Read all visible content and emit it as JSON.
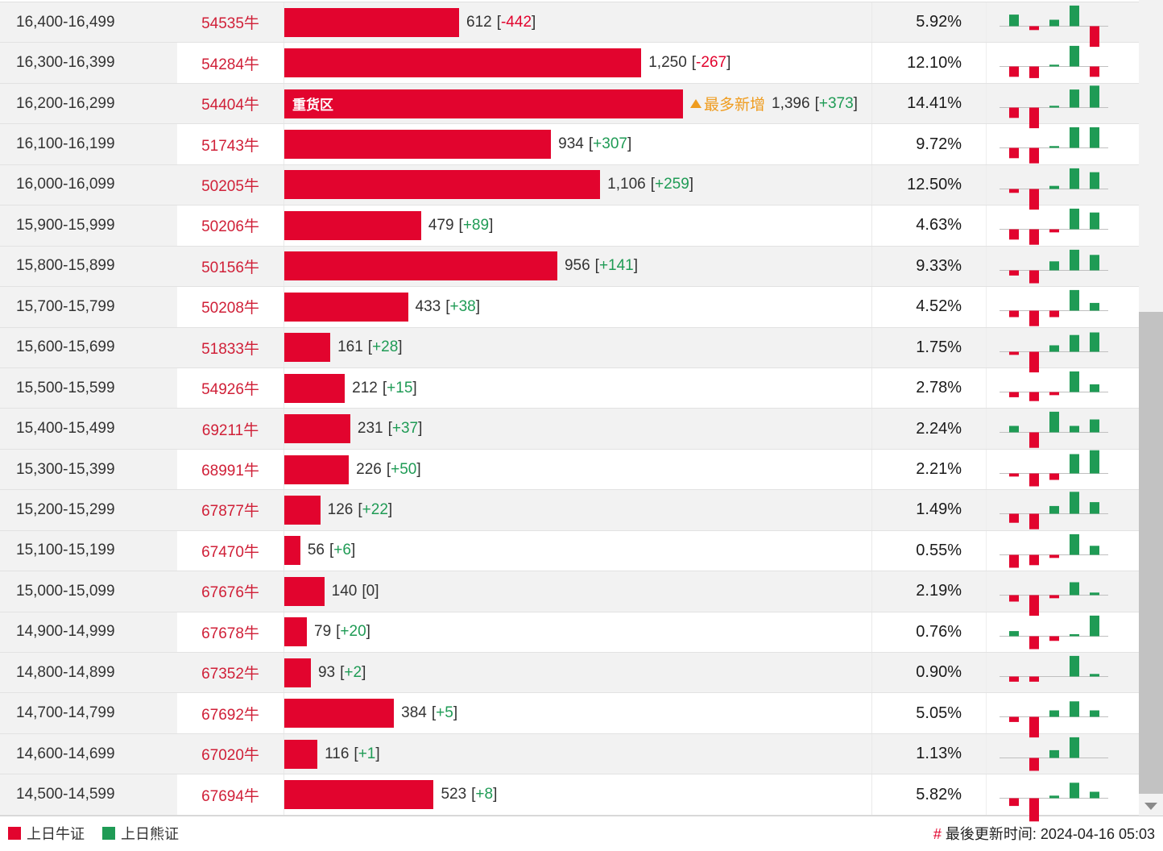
{
  "colors": {
    "bar_red": "#e2042e",
    "code_red": "#d02038",
    "green": "#1f9b55",
    "orange": "#ef9c1f",
    "row_alt_bg": "#f2f2f2",
    "baseline_gray": "#c0c0c0",
    "scroll_thumb": "#c2c2c2"
  },
  "table": {
    "bar_scale_max": 1396,
    "heavy_zone_label": "重货区",
    "most_added_label": "最多新增",
    "rows": [
      {
        "range": "16,400-16,499",
        "code": "54535牛",
        "value": 612,
        "display": "612",
        "delta": "-442",
        "percent": "5.92%",
        "spark": [
          4.5,
          -1.5,
          2.5,
          8,
          -8
        ]
      },
      {
        "range": "16,300-16,399",
        "code": "54284牛",
        "value": 1250,
        "display": "1,250",
        "delta": "-267",
        "percent": "12.10%",
        "spark": [
          -4,
          -4.5,
          0.7,
          8,
          -4
        ]
      },
      {
        "range": "16,200-16,299",
        "code": "54404牛",
        "value": 1396,
        "display": "1,396",
        "delta": "+373",
        "percent": "14.41%",
        "spark": [
          -4,
          -8,
          0.7,
          7,
          8.5
        ],
        "tag": true,
        "most_added": true
      },
      {
        "range": "16,100-16,199",
        "code": "51743牛",
        "value": 934,
        "display": "934",
        "delta": "+307",
        "percent": "9.72%",
        "spark": [
          -4,
          -6,
          0.7,
          8,
          8
        ]
      },
      {
        "range": "16,000-16,099",
        "code": "50205牛",
        "value": 1106,
        "display": "1,106",
        "delta": "+259",
        "percent": "12.50%",
        "spark": [
          -1.5,
          -8,
          1.2,
          8,
          6.5
        ]
      },
      {
        "range": "15,900-15,999",
        "code": "50206牛",
        "value": 479,
        "display": "479",
        "delta": "+89",
        "percent": "4.63%",
        "spark": [
          -4,
          -6,
          -1.2,
          8,
          6.5
        ]
      },
      {
        "range": "15,800-15,899",
        "code": "50156牛",
        "value": 956,
        "display": "956",
        "delta": "+141",
        "percent": "9.33%",
        "spark": [
          -2,
          -5,
          3.5,
          8,
          6
        ]
      },
      {
        "range": "15,700-15,799",
        "code": "50208牛",
        "value": 433,
        "display": "433",
        "delta": "+38",
        "percent": "4.52%",
        "spark": [
          -2.5,
          -6,
          -2.5,
          8,
          3
        ]
      },
      {
        "range": "15,600-15,699",
        "code": "51833牛",
        "value": 161,
        "display": "161",
        "delta": "+28",
        "percent": "1.75%",
        "spark": [
          -1.2,
          -8,
          2.5,
          6.5,
          7.5
        ]
      },
      {
        "range": "15,500-15,599",
        "code": "54926牛",
        "value": 212,
        "display": "212",
        "delta": "+15",
        "percent": "2.78%",
        "spark": [
          -2,
          -3.5,
          -1.2,
          8,
          3
        ]
      },
      {
        "range": "15,400-15,499",
        "code": "69211牛",
        "value": 231,
        "display": "231",
        "delta": "+37",
        "percent": "2.24%",
        "spark": [
          2.5,
          -6,
          8,
          2.5,
          5
        ]
      },
      {
        "range": "15,300-15,399",
        "code": "68991牛",
        "value": 226,
        "display": "226",
        "delta": "+50",
        "percent": "2.21%",
        "spark": [
          -1.2,
          -5,
          -2.5,
          7.5,
          9
        ]
      },
      {
        "range": "15,200-15,299",
        "code": "67877牛",
        "value": 126,
        "display": "126",
        "delta": "+22",
        "percent": "1.49%",
        "spark": [
          -3.5,
          -6,
          3,
          8.5,
          4.5
        ]
      },
      {
        "range": "15,100-15,199",
        "code": "67470牛",
        "value": 56,
        "display": "56",
        "delta": "+6",
        "percent": "0.55%",
        "spark": [
          -5,
          -4,
          -1.2,
          8,
          3.5
        ]
      },
      {
        "range": "15,000-15,099",
        "code": "67676牛",
        "value": 140,
        "display": "140",
        "delta": "0",
        "percent": "2.19%",
        "spark": [
          -2.5,
          -8,
          -1.2,
          5,
          1
        ]
      },
      {
        "range": "14,900-14,999",
        "code": "67678牛",
        "value": 79,
        "display": "79",
        "delta": "+20",
        "percent": "0.76%",
        "spark": [
          2,
          -5,
          -1.8,
          0.8,
          8
        ]
      },
      {
        "range": "14,800-14,899",
        "code": "67352牛",
        "value": 93,
        "display": "93",
        "delta": "+2",
        "percent": "0.90%",
        "spark": [
          -2,
          -2,
          0,
          8,
          1
        ]
      },
      {
        "range": "14,700-14,799",
        "code": "67692牛",
        "value": 384,
        "display": "384",
        "delta": "+5",
        "percent": "5.05%",
        "spark": [
          -2,
          -8,
          2.5,
          6,
          2.5
        ]
      },
      {
        "range": "14,600-14,699",
        "code": "67020牛",
        "value": 116,
        "display": "116",
        "delta": "+1",
        "percent": "1.13%",
        "spark": [
          0,
          -5,
          3,
          8,
          0
        ]
      },
      {
        "range": "14,500-14,599",
        "code": "67694牛",
        "value": 523,
        "display": "523",
        "delta": "+8",
        "percent": "5.82%",
        "spark": [
          -3,
          -9,
          1,
          6,
          2.5
        ]
      }
    ]
  },
  "footer": {
    "legend_bull": "上日牛证",
    "legend_bear": "上日熊证",
    "update_prefix": "#",
    "update_label": "最後更新时间:",
    "update_time": "2024-04-16 05:03"
  },
  "chart_data": {
    "type": "bar",
    "orientation": "horizontal",
    "categories": [
      "16,400-16,499",
      "16,300-16,399",
      "16,200-16,299",
      "16,100-16,199",
      "16,000-16,099",
      "15,900-15,999",
      "15,800-15,899",
      "15,700-15,799",
      "15,600-15,699",
      "15,500-15,599",
      "15,400-15,499",
      "15,300-15,399",
      "15,200-15,299",
      "15,100-15,199",
      "15,000-15,099",
      "14,900-14,999",
      "14,800-14,899",
      "14,700-14,799",
      "14,600-14,699",
      "14,500-14,599"
    ],
    "codes": [
      "54535牛",
      "54284牛",
      "54404牛",
      "51743牛",
      "50205牛",
      "50206牛",
      "50156牛",
      "50208牛",
      "51833牛",
      "54926牛",
      "69211牛",
      "68991牛",
      "67877牛",
      "67470牛",
      "67676牛",
      "67678牛",
      "67352牛",
      "67692牛",
      "67020牛",
      "67694牛"
    ],
    "series": [
      {
        "name": "outstanding_quantity",
        "values": [
          612,
          1250,
          1396,
          934,
          1106,
          479,
          956,
          433,
          161,
          212,
          231,
          226,
          126,
          56,
          140,
          79,
          93,
          384,
          116,
          523
        ]
      },
      {
        "name": "change",
        "values": [
          -442,
          -267,
          373,
          307,
          259,
          89,
          141,
          38,
          28,
          15,
          37,
          50,
          22,
          6,
          0,
          20,
          2,
          5,
          1,
          8
        ]
      },
      {
        "name": "percent_share",
        "values": [
          5.92,
          12.1,
          14.41,
          9.72,
          12.5,
          4.63,
          9.33,
          4.52,
          1.75,
          2.78,
          2.24,
          2.21,
          1.49,
          0.55,
          2.19,
          0.76,
          0.9,
          5.05,
          1.13,
          5.82
        ]
      }
    ],
    "sparklines": [
      [
        4.5,
        -1.5,
        2.5,
        8,
        -8
      ],
      [
        -4,
        -4.5,
        0.7,
        8,
        -4
      ],
      [
        -4,
        -8,
        0.7,
        7,
        8.5
      ],
      [
        -4,
        -6,
        0.7,
        8,
        8
      ],
      [
        -1.5,
        -8,
        1.2,
        8,
        6.5
      ],
      [
        -4,
        -6,
        -1.2,
        8,
        6.5
      ],
      [
        -2,
        -5,
        3.5,
        8,
        6
      ],
      [
        -2.5,
        -6,
        -2.5,
        8,
        3
      ],
      [
        -1.2,
        -8,
        2.5,
        6.5,
        7.5
      ],
      [
        -2,
        -3.5,
        -1.2,
        8,
        3
      ],
      [
        2.5,
        -6,
        8,
        2.5,
        5
      ],
      [
        -1.2,
        -5,
        -2.5,
        7.5,
        9
      ],
      [
        -3.5,
        -6,
        3,
        8.5,
        4.5
      ],
      [
        -5,
        -4,
        -1.2,
        8,
        3.5
      ],
      [
        -2.5,
        -8,
        -1.2,
        5,
        1
      ],
      [
        2,
        -5,
        -1.8,
        0.8,
        8
      ],
      [
        -2,
        -2,
        0,
        8,
        1
      ],
      [
        -2,
        -8,
        2.5,
        6,
        2.5
      ],
      [
        0,
        -5,
        3,
        8,
        0
      ],
      [
        -3,
        -9,
        1,
        6,
        2.5
      ]
    ],
    "annotations": {
      "heavy_zone_category": "16,200-16,299",
      "most_added_category": "16,200-16,299",
      "most_added_label": "最多新增"
    },
    "xlim": [
      0,
      1396
    ],
    "legend": [
      "上日牛证",
      "上日熊证"
    ],
    "grid": false,
    "legend_position": "bottom-left"
  }
}
